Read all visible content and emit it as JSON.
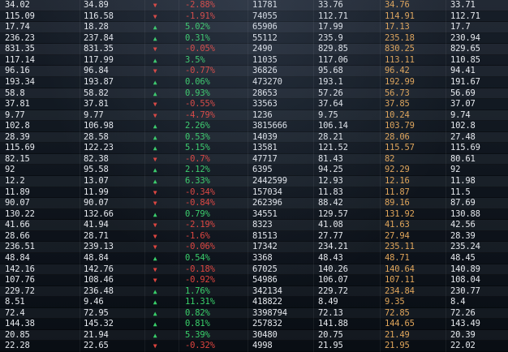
{
  "board": {
    "rows": [
      {
        "open": "34.02",
        "close": "34.89",
        "dir": "down",
        "change": "-2.88%",
        "volume": "11781",
        "low": "33.76",
        "prev": "34.76",
        "last": "33.71"
      },
      {
        "open": "115.09",
        "close": "116.58",
        "dir": "down",
        "change": "-1.91%",
        "volume": "74055",
        "low": "112.71",
        "prev": "114.91",
        "last": "112.71"
      },
      {
        "open": "17.74",
        "close": "18.28",
        "dir": "up",
        "change": "5.02%",
        "volume": "65906",
        "low": "17.99",
        "prev": "17.13",
        "last": "17.7"
      },
      {
        "open": "236.23",
        "close": "237.84",
        "dir": "up",
        "change": "0.31%",
        "volume": "55112",
        "low": "235.9",
        "prev": "235.18",
        "last": "230.94"
      },
      {
        "open": "831.35",
        "close": "831.35",
        "dir": "down",
        "change": "-0.05%",
        "volume": "2490",
        "low": "829.85",
        "prev": "830.25",
        "last": "829.65"
      },
      {
        "open": "117.14",
        "close": "117.99",
        "dir": "up",
        "change": "3.5%",
        "volume": "11035",
        "low": "117.06",
        "prev": "113.11",
        "last": "110.85"
      },
      {
        "open": "96.16",
        "close": "96.84",
        "dir": "down",
        "change": "-0.77%",
        "volume": "36826",
        "low": "95.68",
        "prev": "96.42",
        "last": "94.41"
      },
      {
        "open": "193.34",
        "close": "193.87",
        "dir": "up",
        "change": "0.06%",
        "volume": "473270",
        "low": "193.1",
        "prev": "192.99",
        "last": "191.67"
      },
      {
        "open": "58.8",
        "close": "58.82",
        "dir": "up",
        "change": "0.93%",
        "volume": "28653",
        "low": "57.26",
        "prev": "56.73",
        "last": "56.69"
      },
      {
        "open": "37.81",
        "close": "37.81",
        "dir": "down",
        "change": "-0.55%",
        "volume": "33563",
        "low": "37.64",
        "prev": "37.85",
        "last": "37.07"
      },
      {
        "open": "9.77",
        "close": "9.77",
        "dir": "down",
        "change": "-4.79%",
        "volume": "1236",
        "low": "9.75",
        "prev": "10.24",
        "last": "9.74"
      },
      {
        "open": "102.8",
        "close": "106.98",
        "dir": "up",
        "change": "2.26%",
        "volume": "3815666",
        "low": "106.14",
        "prev": "103.79",
        "last": "102.8"
      },
      {
        "open": "28.39",
        "close": "28.58",
        "dir": "up",
        "change": "0.53%",
        "volume": "14039",
        "low": "28.21",
        "prev": "28.06",
        "last": "27.48"
      },
      {
        "open": "115.69",
        "close": "122.23",
        "dir": "up",
        "change": "5.15%",
        "volume": "13581",
        "low": "121.52",
        "prev": "115.57",
        "last": "115.69"
      },
      {
        "open": "82.15",
        "close": "82.38",
        "dir": "down",
        "change": "-0.7%",
        "volume": "47717",
        "low": "81.43",
        "prev": "82",
        "last": "80.61"
      },
      {
        "open": "92",
        "close": "95.58",
        "dir": "up",
        "change": "2.12%",
        "volume": "6395",
        "low": "94.25",
        "prev": "92.29",
        "last": "92"
      },
      {
        "open": "12.2",
        "close": "13.07",
        "dir": "up",
        "change": "6.33%",
        "volume": "2442599",
        "low": "12.93",
        "prev": "12.16",
        "last": "11.98"
      },
      {
        "open": "11.89",
        "close": "11.99",
        "dir": "down",
        "change": "-0.34%",
        "volume": "157034",
        "low": "11.83",
        "prev": "11.87",
        "last": "11.5"
      },
      {
        "open": "90.07",
        "close": "90.07",
        "dir": "down",
        "change": "-0.84%",
        "volume": "262396",
        "low": "88.42",
        "prev": "89.16",
        "last": "87.69"
      },
      {
        "open": "130.22",
        "close": "132.66",
        "dir": "up",
        "change": "0.79%",
        "volume": "34551",
        "low": "129.57",
        "prev": "131.92",
        "last": "130.88"
      },
      {
        "open": "41.66",
        "close": "41.94",
        "dir": "down",
        "change": "-2.19%",
        "volume": "8323",
        "low": "41.08",
        "prev": "41.63",
        "last": "42.56"
      },
      {
        "open": "28.66",
        "close": "28.71",
        "dir": "down",
        "change": "-1.6%",
        "volume": "81513",
        "low": "27.77",
        "prev": "27.94",
        "last": "28.39"
      },
      {
        "open": "236.51",
        "close": "239.13",
        "dir": "down",
        "change": "-0.06%",
        "volume": "17342",
        "low": "234.21",
        "prev": "235.11",
        "last": "235.24"
      },
      {
        "open": "48.84",
        "close": "48.84",
        "dir": "up",
        "change": "0.54%",
        "volume": "3368",
        "low": "48.43",
        "prev": "48.71",
        "last": "48.45"
      },
      {
        "open": "142.16",
        "close": "142.76",
        "dir": "down",
        "change": "-0.18%",
        "volume": "67025",
        "low": "140.26",
        "prev": "140.64",
        "last": "140.89"
      },
      {
        "open": "107.76",
        "close": "108.46",
        "dir": "down",
        "change": "-0.92%",
        "volume": "54986",
        "low": "106.07",
        "prev": "107.11",
        "last": "108.04"
      },
      {
        "open": "229.72",
        "close": "236.48",
        "dir": "up",
        "change": "1.76%",
        "volume": "342134",
        "low": "229.72",
        "prev": "234.84",
        "last": "230.77"
      },
      {
        "open": "8.51",
        "close": "9.46",
        "dir": "up",
        "change": "11.31%",
        "volume": "418822",
        "low": "8.49",
        "prev": "9.35",
        "last": "8.4"
      },
      {
        "open": "72.4",
        "close": "72.95",
        "dir": "up",
        "change": "0.82%",
        "volume": "3398794",
        "low": "72.13",
        "prev": "72.85",
        "last": "72.26"
      },
      {
        "open": "144.38",
        "close": "145.32",
        "dir": "up",
        "change": "0.81%",
        "volume": "257832",
        "low": "141.88",
        "prev": "144.65",
        "last": "143.49"
      },
      {
        "open": "20.85",
        "close": "21.94",
        "dir": "up",
        "change": "5.39%",
        "volume": "30480",
        "low": "20.75",
        "prev": "21.49",
        "last": "20.39"
      },
      {
        "open": "22.28",
        "close": "22.65",
        "dir": "down",
        "change": "-0.32%",
        "volume": "4998",
        "low": "21.95",
        "prev": "21.95",
        "last": "22.02"
      }
    ]
  },
  "colors": {
    "up": "#39d06a",
    "down": "#e0443e",
    "highlight": "#e0a55a",
    "text": "#e6e9ee"
  },
  "icons": {
    "up": "triangle-up-icon",
    "down": "triangle-down-icon"
  }
}
